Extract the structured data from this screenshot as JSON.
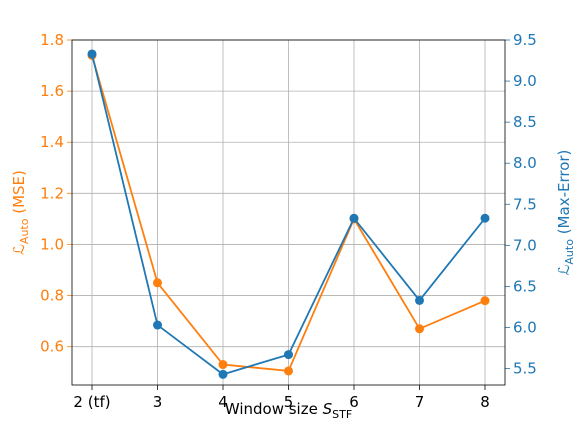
{
  "chart_data": {
    "type": "line",
    "categories": [
      "2 (tf)",
      "3",
      "4",
      "5",
      "6",
      "7",
      "8"
    ],
    "xlabel": {
      "main": "Window size ",
      "var": "S",
      "sub": "STF"
    },
    "grid": true,
    "left_axis": {
      "label": {
        "main": "ℒ",
        "sub": "Auto",
        "rest": " (MSE)"
      },
      "ylim": [
        0.45,
        1.8
      ],
      "ticks": [
        0.6,
        0.8,
        1.0,
        1.2,
        1.4,
        1.6,
        1.8
      ],
      "tick_labels": [
        "0.6",
        "0.8",
        "1.0",
        "1.2",
        "1.4",
        "1.6",
        "1.8"
      ],
      "color": "#ff7f0e"
    },
    "right_axis": {
      "label": {
        "main": "ℒ",
        "sub": "Auto",
        "rest": " (Max-Error)"
      },
      "ylim": [
        5.3,
        9.5
      ],
      "ticks": [
        5.5,
        6.0,
        6.5,
        7.0,
        7.5,
        8.0,
        8.5,
        9.0,
        9.5
      ],
      "tick_labels": [
        "5.5",
        "6.0",
        "6.5",
        "7.0",
        "7.5",
        "8.0",
        "8.5",
        "9.0",
        "9.5"
      ],
      "color": "#1f77b4"
    },
    "series": [
      {
        "axis": "left",
        "color": "#ff7f0e",
        "values": [
          1.74,
          0.85,
          0.53,
          0.505,
          1.1,
          0.67,
          0.78
        ]
      },
      {
        "axis": "right",
        "color": "#1f77b4",
        "values": [
          9.33,
          6.03,
          5.43,
          5.67,
          7.33,
          6.33,
          7.33
        ]
      }
    ]
  }
}
